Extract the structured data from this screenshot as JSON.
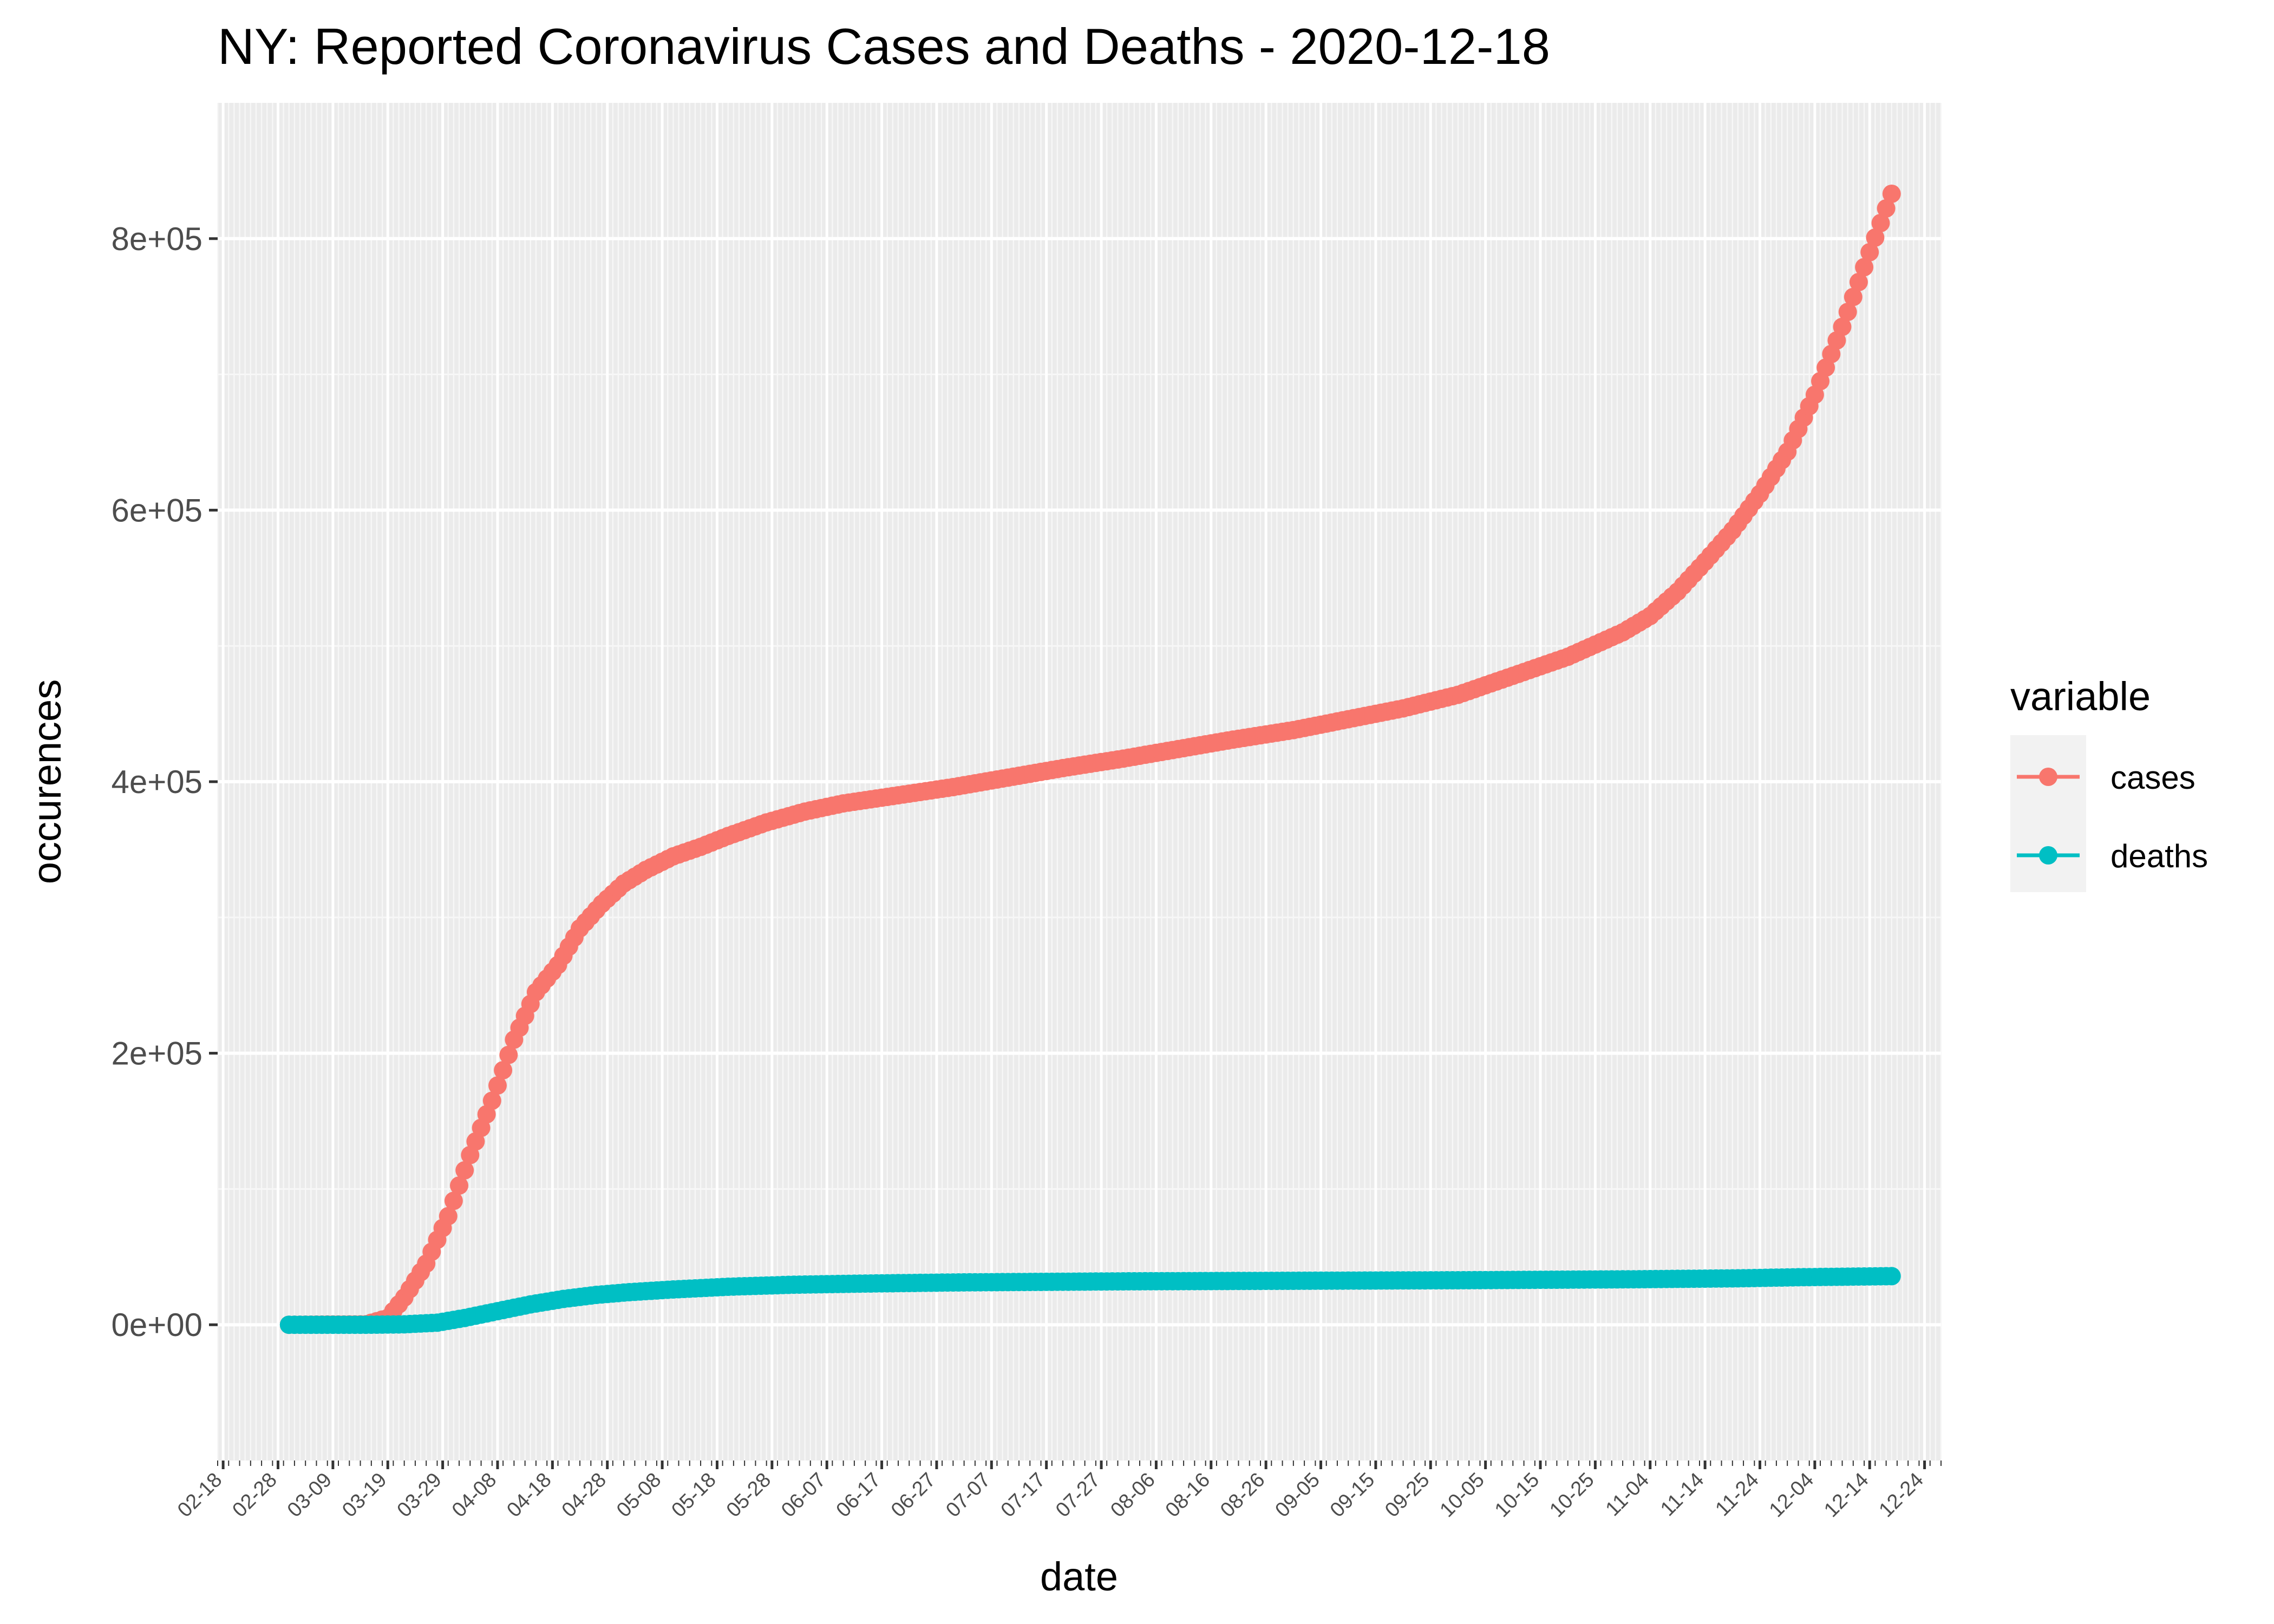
{
  "chart_data": {
    "type": "line",
    "title": "NY: Reported Coronavirus Cases and Deaths - 2020-12-18",
    "xlabel": "date",
    "ylabel": "occurences",
    "x_range": [
      "2020-02-17",
      "2020-12-27"
    ],
    "ylim": [
      -100000,
      900000
    ],
    "x_ticks": [
      "02-18",
      "02-28",
      "03-09",
      "03-19",
      "03-29",
      "04-08",
      "04-18",
      "04-28",
      "05-08",
      "05-18",
      "05-28",
      "06-07",
      "06-17",
      "06-27",
      "07-07",
      "07-17",
      "07-27",
      "08-06",
      "08-16",
      "08-26",
      "09-05",
      "09-15",
      "09-25",
      "10-05",
      "10-15",
      "10-25",
      "11-04",
      "11-14",
      "11-24",
      "12-04",
      "12-14",
      "12-24"
    ],
    "x_tick_year": 2020,
    "y_ticks": [
      {
        "value": 0,
        "label": "0e+00"
      },
      {
        "value": 200000,
        "label": "2e+05"
      },
      {
        "value": 400000,
        "label": "4e+05"
      },
      {
        "value": 600000,
        "label": "6e+05"
      },
      {
        "value": 800000,
        "label": "8e+05"
      }
    ],
    "grid": true,
    "legend": {
      "title": "variable",
      "placement": "right"
    },
    "series": [
      {
        "name": "cases",
        "color": "#F8766D",
        "points": [
          [
            "2020-03-01",
            0
          ],
          [
            "2020-03-15",
            300
          ],
          [
            "2020-03-19",
            5000
          ],
          [
            "2020-03-22",
            20000
          ],
          [
            "2020-03-26",
            45000
          ],
          [
            "2020-03-30",
            80000
          ],
          [
            "2020-04-03",
            125000
          ],
          [
            "2020-04-07",
            165000
          ],
          [
            "2020-04-11",
            210000
          ],
          [
            "2020-04-15",
            245000
          ],
          [
            "2020-04-19",
            265000
          ],
          [
            "2020-04-23",
            292000
          ],
          [
            "2020-04-27",
            310000
          ],
          [
            "2020-05-01",
            325000
          ],
          [
            "2020-05-05",
            335000
          ],
          [
            "2020-05-10",
            345000
          ],
          [
            "2020-05-15",
            352000
          ],
          [
            "2020-05-20",
            360000
          ],
          [
            "2020-05-27",
            370000
          ],
          [
            "2020-06-03",
            378000
          ],
          [
            "2020-06-10",
            384000
          ],
          [
            "2020-06-20",
            390000
          ],
          [
            "2020-06-30",
            396000
          ],
          [
            "2020-07-10",
            403000
          ],
          [
            "2020-07-20",
            410000
          ],
          [
            "2020-07-31",
            417000
          ],
          [
            "2020-08-10",
            424000
          ],
          [
            "2020-08-20",
            431000
          ],
          [
            "2020-08-31",
            438000
          ],
          [
            "2020-09-10",
            446000
          ],
          [
            "2020-09-20",
            454000
          ],
          [
            "2020-09-30",
            464000
          ],
          [
            "2020-10-10",
            478000
          ],
          [
            "2020-10-20",
            492000
          ],
          [
            "2020-10-30",
            510000
          ],
          [
            "2020-11-04",
            522000
          ],
          [
            "2020-11-09",
            540000
          ],
          [
            "2020-11-14",
            562000
          ],
          [
            "2020-11-19",
            585000
          ],
          [
            "2020-11-24",
            612000
          ],
          [
            "2020-11-29",
            643000
          ],
          [
            "2020-12-04",
            685000
          ],
          [
            "2020-12-09",
            735000
          ],
          [
            "2020-12-14",
            790000
          ],
          [
            "2020-12-18",
            833000
          ]
        ]
      },
      {
        "name": "deaths",
        "color": "#00BFC4",
        "points": [
          [
            "2020-03-01",
            0
          ],
          [
            "2020-03-15",
            10
          ],
          [
            "2020-03-22",
            300
          ],
          [
            "2020-03-28",
            1500
          ],
          [
            "2020-04-02",
            5000
          ],
          [
            "2020-04-08",
            10000
          ],
          [
            "2020-04-14",
            15000
          ],
          [
            "2020-04-20",
            19000
          ],
          [
            "2020-04-26",
            22000
          ],
          [
            "2020-05-02",
            24000
          ],
          [
            "2020-05-10",
            26000
          ],
          [
            "2020-05-20",
            28000
          ],
          [
            "2020-06-01",
            29500
          ],
          [
            "2020-06-15",
            30400
          ],
          [
            "2020-07-01",
            31200
          ],
          [
            "2020-08-01",
            32000
          ],
          [
            "2020-09-01",
            32400
          ],
          [
            "2020-10-01",
            32800
          ],
          [
            "2020-11-01",
            33500
          ],
          [
            "2020-11-20",
            34200
          ],
          [
            "2020-12-01",
            35000
          ],
          [
            "2020-12-18",
            35800
          ]
        ]
      }
    ]
  }
}
